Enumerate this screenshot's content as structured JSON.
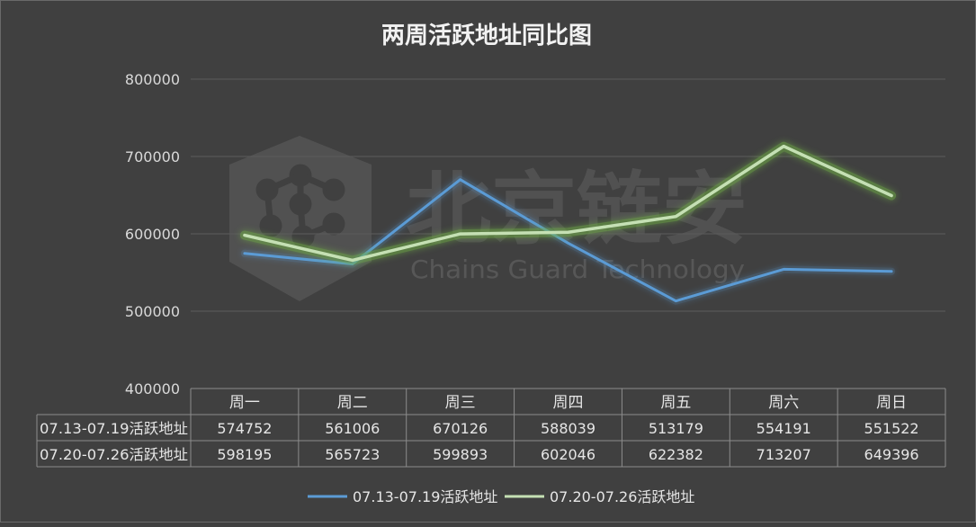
{
  "watermark": {
    "cn": "北京链安",
    "en": "Chains Guard Technology"
  },
  "chart_data": {
    "type": "line",
    "title": "两周活跃地址同比图",
    "categories": [
      "周一",
      "周二",
      "周三",
      "周四",
      "周五",
      "周六",
      "周日"
    ],
    "ylim": [
      400000,
      800000
    ],
    "yticks": [
      400000,
      500000,
      600000,
      700000,
      800000
    ],
    "grid": true,
    "legend_position": "bottom",
    "series": [
      {
        "name": "07.13-07.19活跃地址",
        "color": "#5b9bd5",
        "values": [
          574752,
          561006,
          670126,
          588039,
          513179,
          554191,
          551522
        ]
      },
      {
        "name": "07.20-07.26活跃地址",
        "color": "#c5e0b4",
        "glow": "#70ad47",
        "values": [
          598195,
          565723,
          599893,
          602046,
          622382,
          713207,
          649396
        ]
      }
    ]
  }
}
